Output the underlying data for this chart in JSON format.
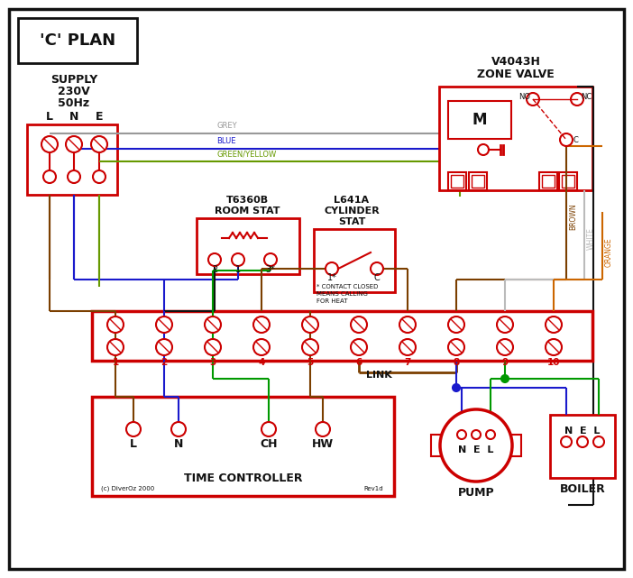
{
  "bg": "#ffffff",
  "bk": "#111111",
  "red": "#cc0000",
  "blue": "#1a1acc",
  "green": "#009900",
  "grey": "#999999",
  "brown": "#7B3F00",
  "orange": "#cc6600",
  "white_w": "#bbbbbb",
  "gy2": "#669900",
  "title": "'C' PLAN",
  "copyright": "(c) DiverOz 2000",
  "rev": "Rev1d"
}
